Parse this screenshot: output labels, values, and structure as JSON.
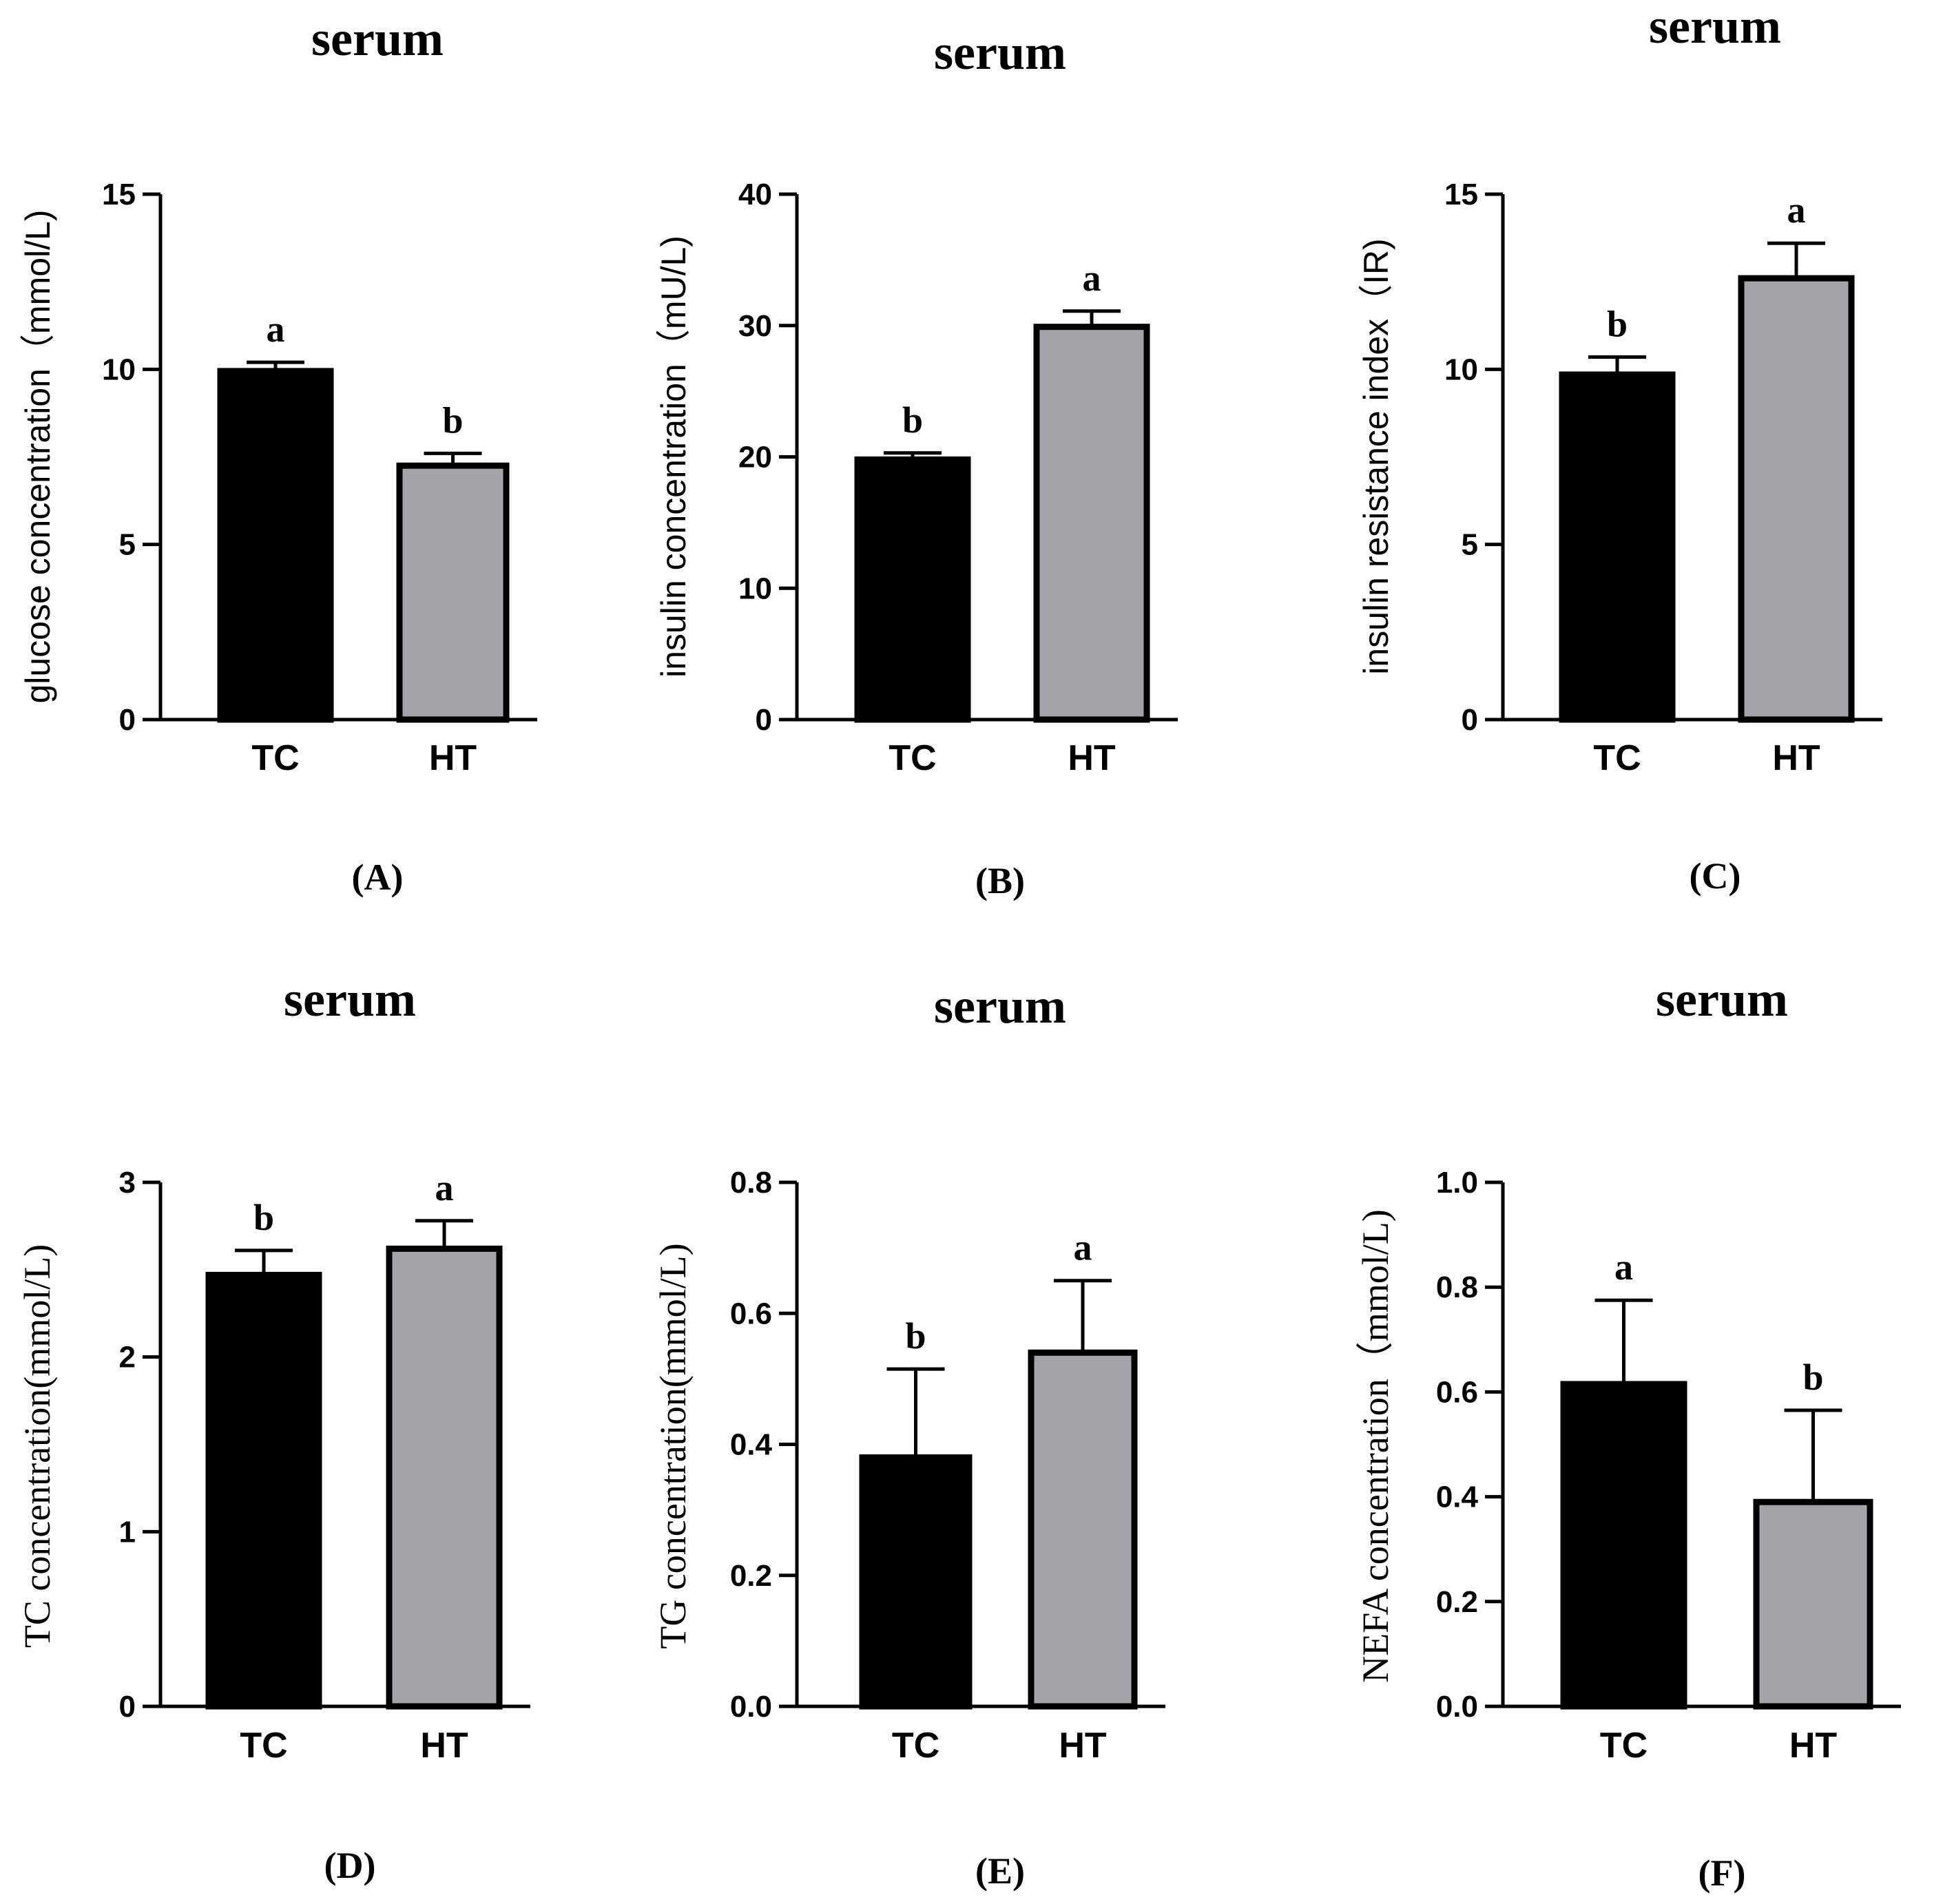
{
  "chart_data": [
    {
      "panel": "(A)",
      "type": "bar",
      "title": "serum",
      "ylabel": "glucose concentration（mmol/L)",
      "ylim": [
        0,
        15
      ],
      "yticks": [
        "0",
        "5",
        "10",
        "15"
      ],
      "categories": [
        "TC",
        "HT"
      ],
      "values": [
        9.95,
        7.25
      ],
      "errors": [
        0.25,
        0.35
      ],
      "significance": [
        "a",
        "b"
      ],
      "colors": [
        "#000000",
        "#a3a3a8"
      ]
    },
    {
      "panel": "(B)",
      "type": "bar",
      "title": "serum",
      "ylabel": "insulin concentration（mU/L)",
      "ylim": [
        0,
        40
      ],
      "yticks": [
        "0",
        "10",
        "20",
        "30",
        "40"
      ],
      "categories": [
        "TC",
        "HT"
      ],
      "values": [
        19.8,
        29.9
      ],
      "errors": [
        0.5,
        1.2
      ],
      "significance": [
        "b",
        "a"
      ],
      "colors": [
        "#000000",
        "#a3a3a8"
      ]
    },
    {
      "panel": "(C)",
      "type": "bar",
      "title": "serum",
      "ylabel": "insulin resistance index（IR)",
      "ylim": [
        0,
        15
      ],
      "yticks": [
        "0",
        "5",
        "10",
        "15"
      ],
      "categories": [
        "TC",
        "HT"
      ],
      "values": [
        9.85,
        12.6
      ],
      "errors": [
        0.5,
        1.0
      ],
      "significance": [
        "b",
        "a"
      ],
      "colors": [
        "#000000",
        "#a3a3a8"
      ]
    },
    {
      "panel": "(D)",
      "type": "bar",
      "title": "serum",
      "ylabel": "TC concentration(mmol/L)",
      "ylim": [
        0,
        3
      ],
      "yticks": [
        "0",
        "1",
        "2",
        "3"
      ],
      "categories": [
        "TC",
        "HT"
      ],
      "values": [
        2.47,
        2.62
      ],
      "errors": [
        0.14,
        0.16
      ],
      "significance": [
        "b",
        "a"
      ],
      "colors": [
        "#000000",
        "#a3a3a8"
      ]
    },
    {
      "panel": "(E)",
      "type": "bar",
      "title": "serum",
      "ylabel": "TG concentration(mmol/L)",
      "ylim": [
        0,
        0.8
      ],
      "yticks": [
        "0.0",
        "0.2",
        "0.4",
        "0.6",
        "0.8"
      ],
      "categories": [
        "TC",
        "HT"
      ],
      "values": [
        0.38,
        0.54
      ],
      "errors": [
        0.135,
        0.11
      ],
      "significance": [
        "b",
        "a"
      ],
      "colors": [
        "#000000",
        "#a3a3a8"
      ]
    },
    {
      "panel": "(F)",
      "type": "bar",
      "title": "serum",
      "ylabel": "NEFA concentration（mmol/L)",
      "ylim": [
        0,
        1.0
      ],
      "yticks": [
        "0.0",
        "0.2",
        "0.4",
        "0.6",
        "0.8",
        "1.0"
      ],
      "categories": [
        "TC",
        "HT"
      ],
      "values": [
        0.615,
        0.39
      ],
      "errors": [
        0.16,
        0.175
      ],
      "significance": [
        "a",
        "b"
      ],
      "colors": [
        "#000000",
        "#a3a3a8"
      ]
    }
  ]
}
